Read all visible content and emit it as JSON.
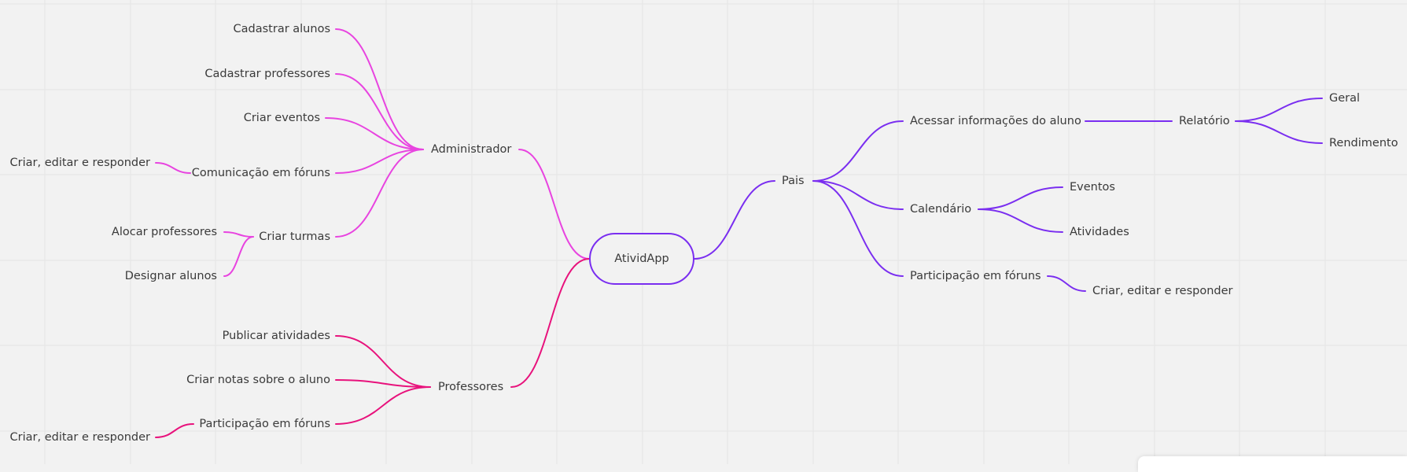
{
  "colors": {
    "background": "#f2f2f2",
    "grid": "#e4e4e4",
    "administrador_branch": "#e844e0",
    "professores_branch": "#e8127c",
    "pais_branch": "#7a2ef0"
  },
  "root": {
    "label": "AtividApp"
  },
  "administrador": {
    "label": "Administrador",
    "children": {
      "cadastrar_alunos": "Cadastrar alunos",
      "cadastrar_professores": "Cadastrar professores",
      "criar_eventos": "Criar eventos",
      "comunicacao_foruns": "Comunicação em fóruns",
      "comunicacao_foruns_child": "Criar, editar e responder",
      "criar_turmas": "Criar turmas",
      "alocar_professores": "Alocar professores",
      "designar_alunos": "Designar alunos"
    }
  },
  "professores": {
    "label": "Professores",
    "children": {
      "publicar_atividades": "Publicar atividades",
      "criar_notas": "Criar notas sobre o aluno",
      "participacao_foruns": "Participação em fóruns",
      "participacao_foruns_child": "Criar, editar e responder"
    }
  },
  "pais": {
    "label": "Pais",
    "children": {
      "acessar_informacoes": "Acessar informações do aluno",
      "relatorio": "Relatório",
      "geral": "Geral",
      "rendimento": "Rendimento",
      "calendario": "Calendário",
      "eventos": "Eventos",
      "atividades": "Atividades",
      "participacao_foruns": "Participação em fóruns",
      "participacao_foruns_child": "Criar, editar e responder"
    }
  }
}
